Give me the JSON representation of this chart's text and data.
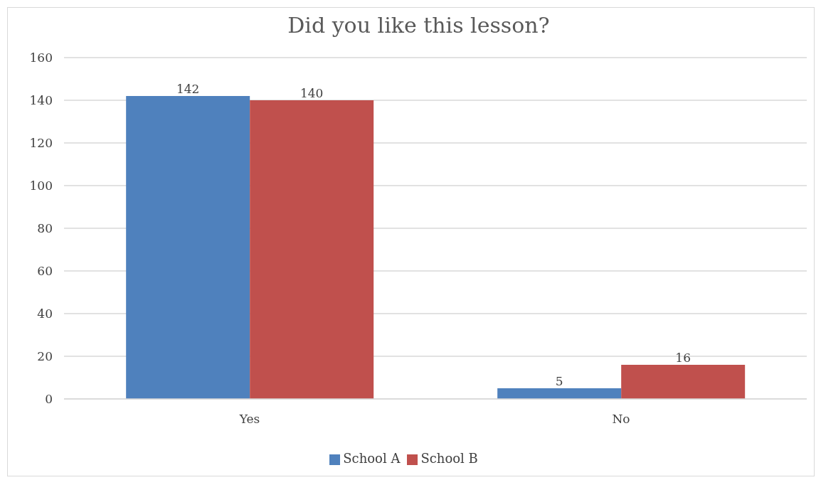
{
  "chart_data": {
    "type": "bar",
    "title": "Did you like this lesson?",
    "categories": [
      "Yes",
      "No"
    ],
    "series": [
      {
        "name": "School A",
        "color": "#4f81bd",
        "values": [
          142,
          5
        ]
      },
      {
        "name": "School B",
        "color": "#c0504d",
        "values": [
          140,
          16
        ]
      }
    ],
    "ylim": [
      0,
      160
    ],
    "yticks": [
      0,
      20,
      40,
      60,
      80,
      100,
      120,
      140,
      160
    ],
    "grid": "y",
    "legend": "bottom",
    "data_labels": true
  }
}
